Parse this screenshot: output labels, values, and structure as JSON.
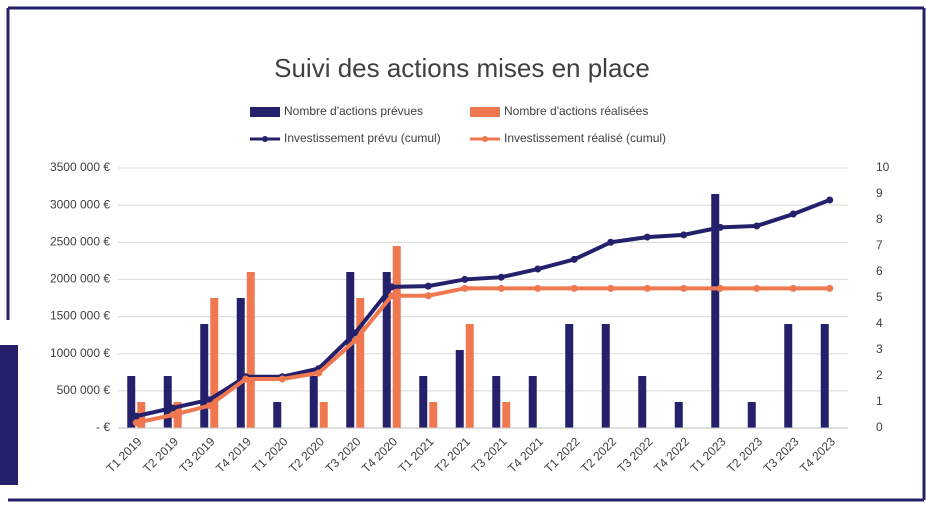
{
  "chart_data": {
    "type": "bar-line",
    "title": "Suivi des actions mises en place",
    "categories": [
      "T1 2019",
      "T2 2019",
      "T3 2019",
      "T4 2019",
      "T1 2020",
      "T2 2020",
      "T3 2020",
      "T4 2020",
      "T1 2021",
      "T2 2021",
      "T3 2021",
      "T4 2021",
      "T1 2022",
      "T2 2022",
      "T3 2022",
      "T4 2022",
      "T1 2023",
      "T2 2023",
      "T3 2023",
      "T4 2023"
    ],
    "series": [
      {
        "name": "Nombre d'actions prévues",
        "color": "#25206b",
        "kind": "bar",
        "axis": "y2",
        "values": [
          2,
          2,
          4,
          5,
          1,
          2,
          6,
          6,
          2,
          3,
          2,
          2,
          4,
          4,
          2,
          1,
          9,
          1,
          4,
          4
        ]
      },
      {
        "name": "Nombre d'actions réalisées",
        "color": "#f07850",
        "kind": "bar",
        "axis": "y2",
        "values": [
          1,
          1,
          5,
          6,
          0,
          1,
          5,
          7,
          1,
          4,
          1,
          0,
          0,
          0,
          0,
          0,
          0,
          0,
          0,
          0
        ]
      },
      {
        "name": "Investissement prévu (cumul)",
        "color": "#25206b",
        "kind": "line",
        "axis": "y",
        "values": [
          160000,
          270000,
          380000,
          690000,
          690000,
          800000,
          1280000,
          1900000,
          1910000,
          2000000,
          2030000,
          2140000,
          2270000,
          2500000,
          2570000,
          2600000,
          2700000,
          2720000,
          2880000,
          3070000
        ]
      },
      {
        "name": "Investissement réalisé (cumul)",
        "color": "#f07850",
        "kind": "line",
        "axis": "y",
        "values": [
          70000,
          175000,
          300000,
          660000,
          660000,
          740000,
          1180000,
          1780000,
          1780000,
          1880000,
          1880000,
          1880000,
          1880000,
          1880000,
          1880000,
          1880000,
          1880000,
          1880000,
          1880000,
          1880000
        ]
      }
    ],
    "ylim": [
      0,
      3500000
    ],
    "yticks": [
      {
        "value": 0,
        "label": "-   €"
      },
      {
        "value": 500000,
        "label": "500 000 €"
      },
      {
        "value": 1000000,
        "label": "1000 000 €"
      },
      {
        "value": 1500000,
        "label": "1500 000 €"
      },
      {
        "value": 2000000,
        "label": "2000 000 €"
      },
      {
        "value": 2500000,
        "label": "2500 000 €"
      },
      {
        "value": 3000000,
        "label": "3000 000 €"
      },
      {
        "value": 3500000,
        "label": "3500 000 €"
      }
    ],
    "y2lim": [
      0,
      10
    ],
    "y2ticks": [
      0,
      1,
      2,
      3,
      4,
      5,
      6,
      7,
      8,
      9,
      10
    ],
    "grid": true
  }
}
